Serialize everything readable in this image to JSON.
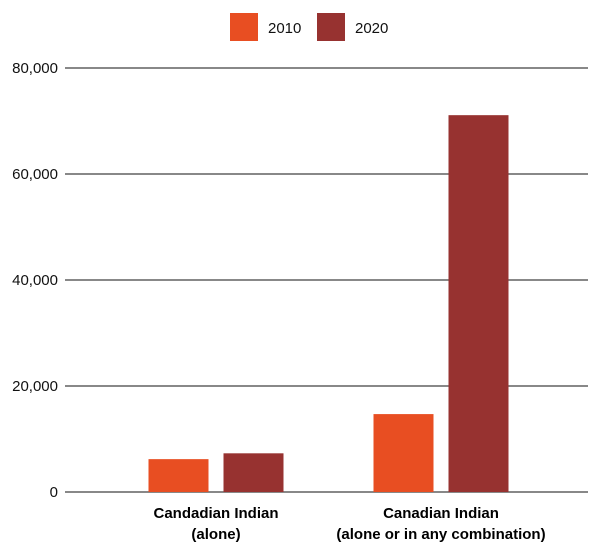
{
  "chart_data": {
    "type": "bar",
    "categories": [
      [
        "Candadian Indian",
        "(alone)"
      ],
      [
        "Canadian Indian",
        "(alone or in any combination)"
      ]
    ],
    "series": [
      {
        "name": "2010",
        "color": "#e84e22",
        "values": [
          6200,
          14700
        ]
      },
      {
        "name": "2020",
        "color": "#973230",
        "values": [
          7300,
          71100
        ]
      }
    ],
    "ylim": [
      0,
      80000
    ],
    "yticks": [
      0,
      20000,
      40000,
      60000,
      80000
    ],
    "ytick_labels": [
      "0",
      "20,000",
      "40,000",
      "60,000",
      "80,000"
    ],
    "grid": true,
    "legend_position": "top-center"
  }
}
